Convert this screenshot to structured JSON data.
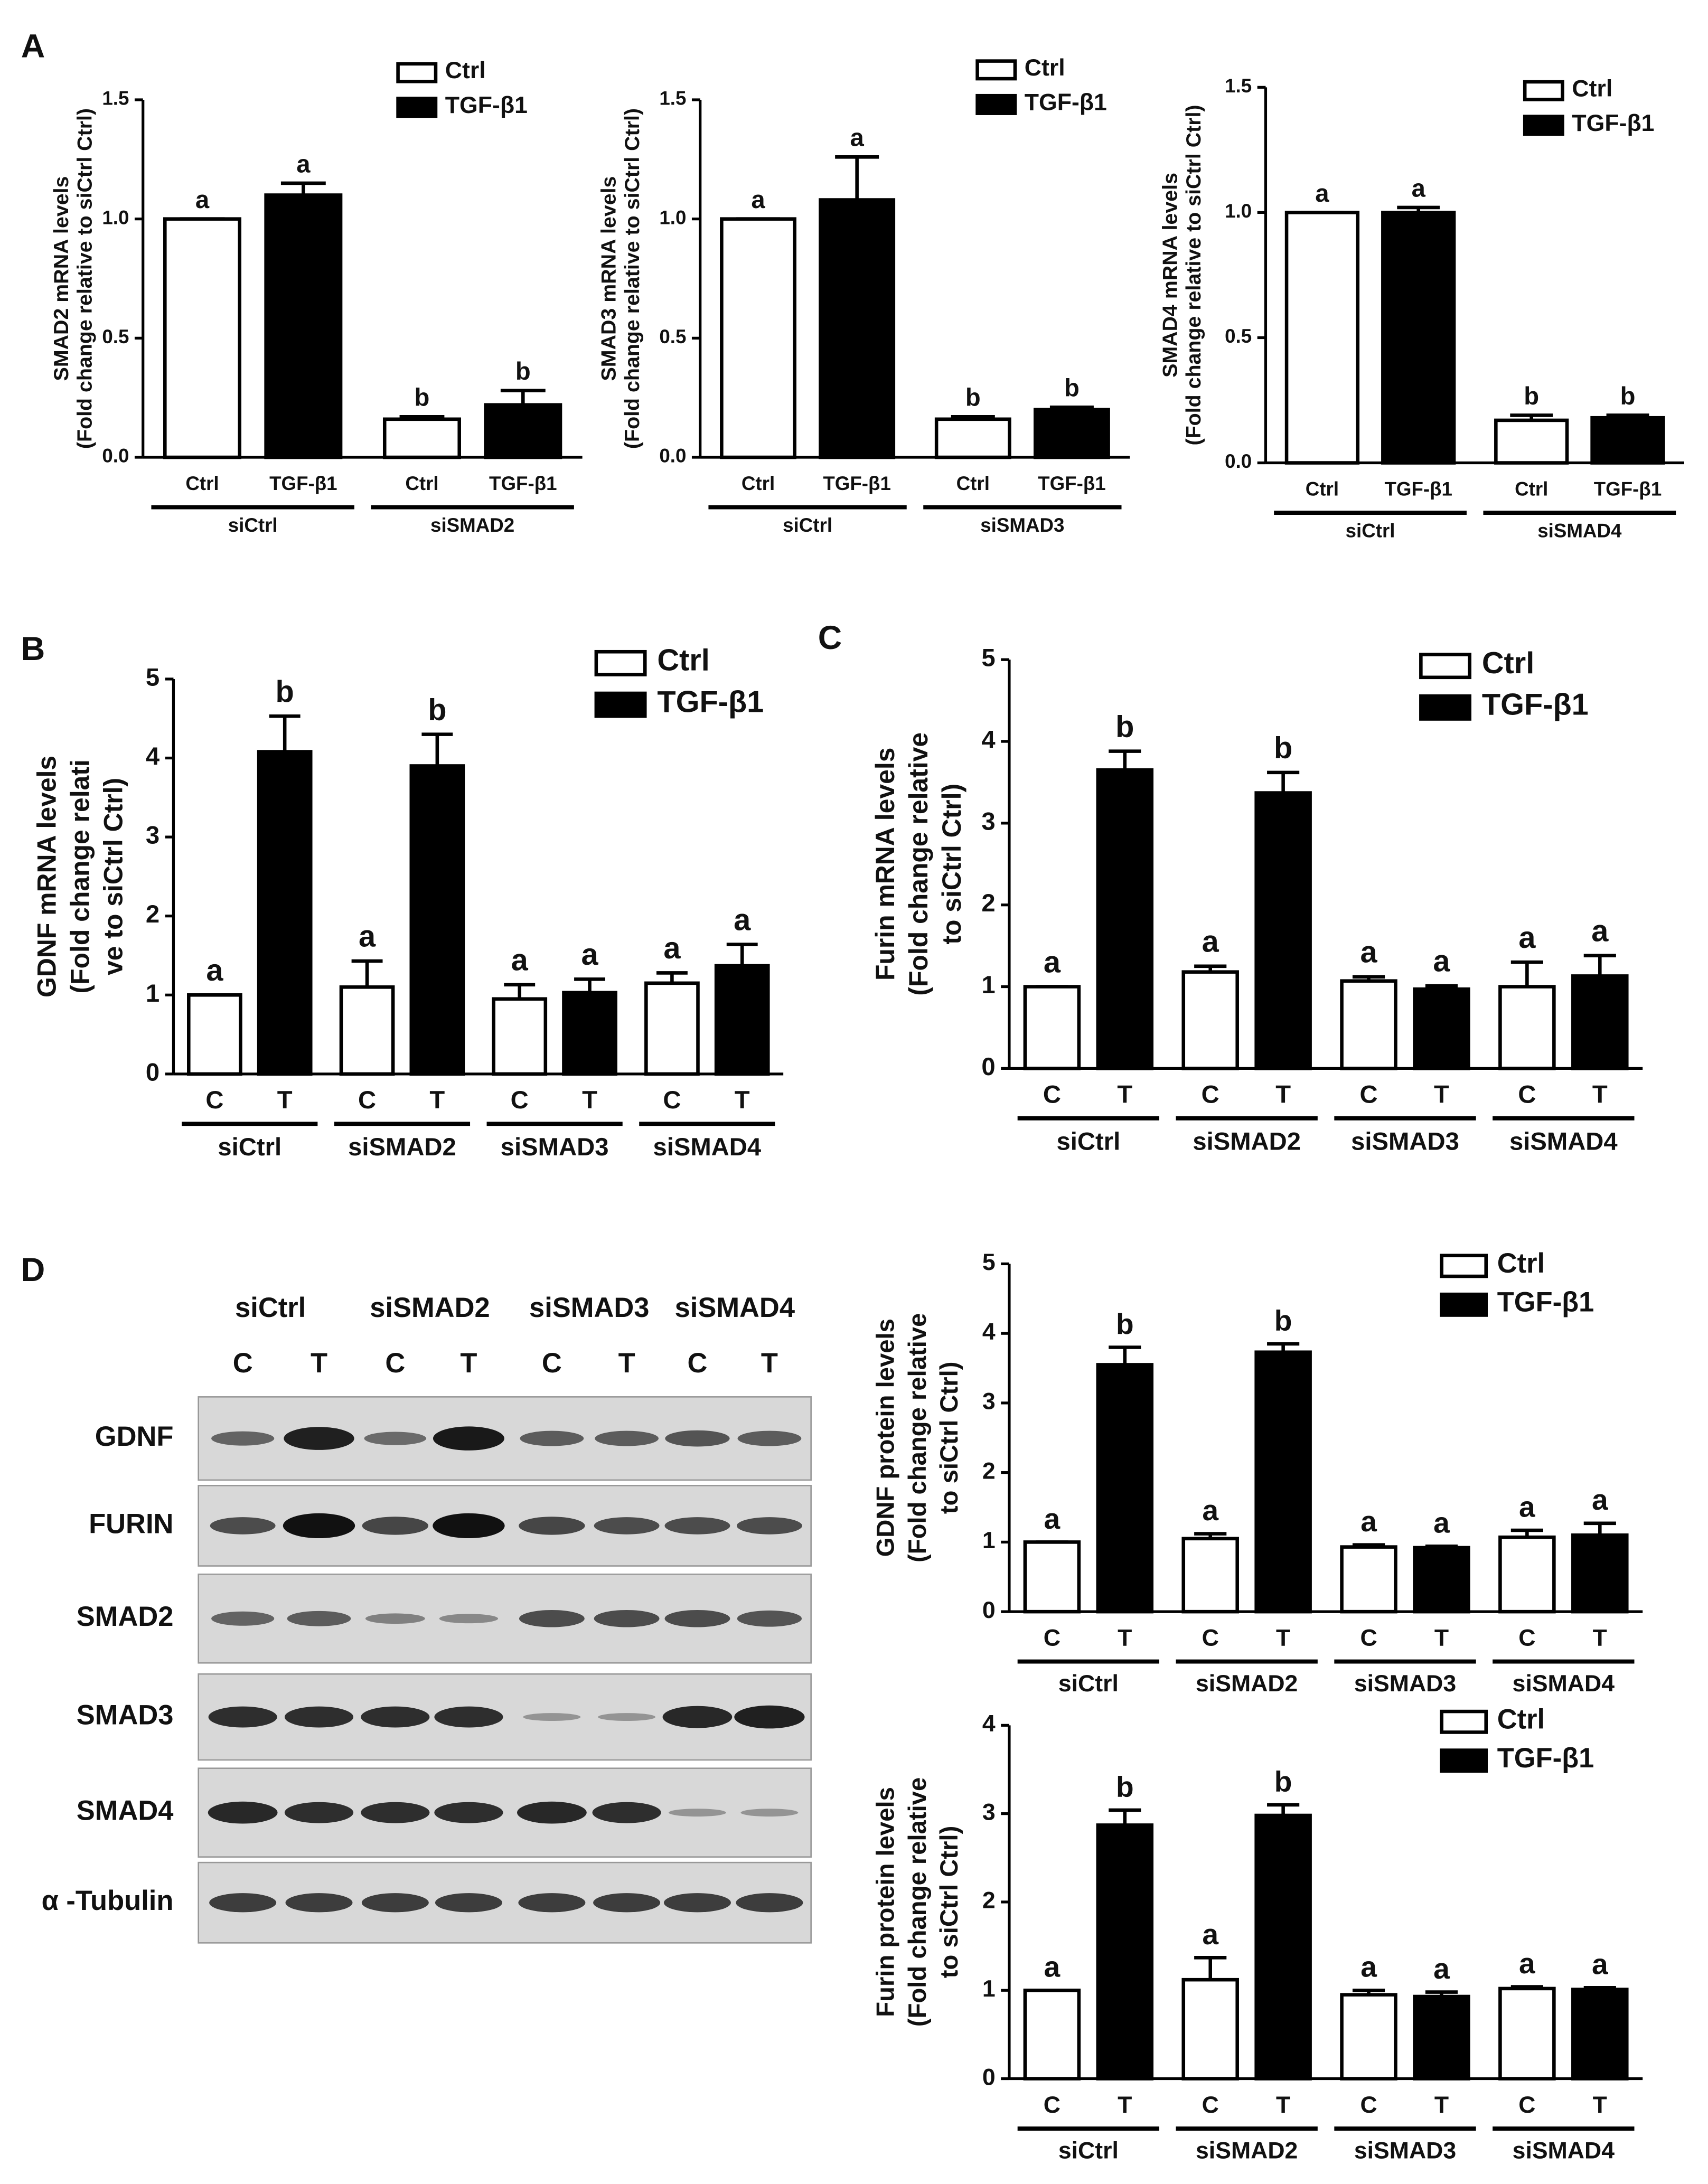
{
  "chart_data": [
    {
      "type": "bar",
      "panel": "A",
      "ylabel": [
        "SMAD2 mRNA levels",
        "(Fold change relative to siCtrl Ctrl)"
      ],
      "groups": [
        "siCtrl",
        "siSMAD2"
      ],
      "ylim": [
        0,
        1.5
      ],
      "yticks": [
        {
          "value": 0,
          "label": "0.0"
        },
        0.5,
        {
          "value": 1,
          "label": "1.0"
        },
        1.5
      ],
      "series": [
        {
          "name": "Ctrl",
          "tick_label": "Ctrl",
          "color": "#ffffff",
          "values": [
            1.0,
            0.16
          ],
          "errors": [
            0,
            0.01
          ],
          "letters": [
            "a",
            "b"
          ]
        },
        {
          "name": "TGF-β1",
          "tick_label": "TGF-β1",
          "color": "#000000",
          "values": [
            1.1,
            0.22
          ],
          "errors": [
            0.05,
            0.06
          ],
          "letters": [
            "a",
            "b"
          ]
        }
      ]
    },
    {
      "type": "bar",
      "ylabel": [
        "SMAD3 mRNA levels",
        "(Fold change relative to siCtrl Ctrl)"
      ],
      "groups": [
        "siCtrl",
        "siSMAD3"
      ],
      "ylim": [
        0,
        1.5
      ],
      "yticks": [
        {
          "value": 0,
          "label": "0.0"
        },
        0.5,
        {
          "value": 1,
          "label": "1.0"
        },
        1.5
      ],
      "series": [
        {
          "name": "Ctrl",
          "tick_label": "Ctrl",
          "color": "#ffffff",
          "values": [
            1.0,
            0.16
          ],
          "errors": [
            0,
            0.01
          ],
          "letters": [
            "a",
            "b"
          ]
        },
        {
          "name": "TGF-β1",
          "tick_label": "TGF-β1",
          "color": "#000000",
          "values": [
            1.08,
            0.2
          ],
          "errors": [
            0.18,
            0.01
          ],
          "letters": [
            "a",
            "b"
          ]
        }
      ]
    },
    {
      "type": "bar",
      "ylabel": [
        "SMAD4 mRNA levels",
        "(Fold change relative to siCtrl Ctrl)"
      ],
      "groups": [
        "siCtrl",
        "siSMAD4"
      ],
      "ylim": [
        0,
        1.5
      ],
      "yticks": [
        {
          "value": 0,
          "label": "0.0"
        },
        0.5,
        {
          "value": 1,
          "label": "1.0"
        },
        1.5
      ],
      "series": [
        {
          "name": "Ctrl",
          "tick_label": "Ctrl",
          "color": "#ffffff",
          "values": [
            1.0,
            0.17
          ],
          "errors": [
            0,
            0.02
          ],
          "letters": [
            "a",
            "b"
          ]
        },
        {
          "name": "TGF-β1",
          "tick_label": "TGF-β1",
          "color": "#000000",
          "values": [
            1.0,
            0.18
          ],
          "errors": [
            0.02,
            0.01
          ],
          "letters": [
            "a",
            "b"
          ]
        }
      ]
    },
    {
      "type": "bar",
      "panel": "B",
      "ylabel": [
        "GDNF mRNA levels",
        "(Fold change relati",
        "ve to siCtrl Ctrl)"
      ],
      "groups": [
        "siCtrl",
        "siSMAD2",
        "siSMAD3",
        "siSMAD4"
      ],
      "ylim": [
        0,
        5
      ],
      "yticks": [
        0,
        1,
        2,
        3,
        4,
        5
      ],
      "series": [
        {
          "name": "Ctrl",
          "tick_label": "C",
          "color": "#ffffff",
          "values": [
            1.0,
            1.1,
            0.95,
            1.15
          ],
          "errors": [
            0,
            0.33,
            0.18,
            0.13
          ],
          "letters": [
            "a",
            "a",
            "a",
            "a"
          ]
        },
        {
          "name": "TGF-β1",
          "tick_label": "T",
          "color": "#000000",
          "values": [
            4.08,
            3.9,
            1.03,
            1.37
          ],
          "errors": [
            0.45,
            0.4,
            0.17,
            0.27
          ],
          "letters": [
            "b",
            "b",
            "a",
            "a"
          ]
        }
      ]
    },
    {
      "type": "bar",
      "panel": "C",
      "ylabel": [
        "Furin mRNA levels",
        "(Fold change relative",
        "to siCtrl Ctrl)"
      ],
      "groups": [
        "siCtrl",
        "siSMAD2",
        "siSMAD3",
        "siSMAD4"
      ],
      "ylim": [
        0,
        5
      ],
      "yticks": [
        0,
        1,
        2,
        3,
        4,
        5
      ],
      "series": [
        {
          "name": "Ctrl",
          "tick_label": "C",
          "color": "#ffffff",
          "values": [
            1.0,
            1.18,
            1.07,
            1.0
          ],
          "errors": [
            0,
            0.07,
            0.05,
            0.3
          ],
          "letters": [
            "a",
            "a",
            "a",
            "a"
          ]
        },
        {
          "name": "TGF-β1",
          "tick_label": "T",
          "color": "#000000",
          "values": [
            3.65,
            3.37,
            0.97,
            1.13
          ],
          "errors": [
            0.23,
            0.25,
            0.04,
            0.25
          ],
          "letters": [
            "b",
            "b",
            "a",
            "a"
          ]
        }
      ]
    },
    {
      "type": "bar",
      "ylabel": [
        "GDNF protein levels",
        "(Fold change relative",
        "to siCtrl Ctrl)"
      ],
      "groups": [
        "siCtrl",
        "siSMAD2",
        "siSMAD3",
        "siSMAD4"
      ],
      "ylim": [
        0,
        5
      ],
      "yticks": [
        0,
        1,
        2,
        3,
        4,
        5
      ],
      "series": [
        {
          "name": "Ctrl",
          "tick_label": "C",
          "color": "#ffffff",
          "values": [
            1.0,
            1.05,
            0.93,
            1.07
          ],
          "errors": [
            0,
            0.07,
            0.03,
            0.1
          ],
          "letters": [
            "a",
            "a",
            "a",
            "a"
          ]
        },
        {
          "name": "TGF-β1",
          "tick_label": "T",
          "color": "#000000",
          "values": [
            3.55,
            3.73,
            0.92,
            1.1
          ],
          "errors": [
            0.25,
            0.12,
            0.02,
            0.17
          ],
          "letters": [
            "b",
            "b",
            "a",
            "a"
          ]
        }
      ]
    },
    {
      "type": "bar",
      "ylabel": [
        "Furin protein levels",
        "(Fold change relative",
        "to siCtrl Ctrl)"
      ],
      "groups": [
        "siCtrl",
        "siSMAD2",
        "siSMAD3",
        "siSMAD4"
      ],
      "ylim": [
        0,
        4
      ],
      "yticks": [
        0,
        1,
        2,
        3,
        4
      ],
      "series": [
        {
          "name": "Ctrl",
          "tick_label": "C",
          "color": "#ffffff",
          "values": [
            1.0,
            1.12,
            0.95,
            1.02
          ],
          "errors": [
            0,
            0.25,
            0.05,
            0.02
          ],
          "letters": [
            "a",
            "a",
            "a",
            "a"
          ]
        },
        {
          "name": "TGF-β1",
          "tick_label": "T",
          "color": "#000000",
          "values": [
            2.87,
            2.98,
            0.93,
            1.01
          ],
          "errors": [
            0.17,
            0.12,
            0.05,
            0.02
          ],
          "letters": [
            "b",
            "b",
            "a",
            "a"
          ]
        }
      ]
    }
  ],
  "blot": {
    "panel": "D",
    "groups": [
      "siCtrl",
      "siSMAD2",
      "siSMAD3",
      "siSMAD4"
    ],
    "lanes": [
      "C",
      "T"
    ],
    "rows": [
      "GDNF",
      "FURIN",
      "SMAD2",
      "SMAD3",
      "SMAD4",
      "α -Tubulin"
    ]
  }
}
